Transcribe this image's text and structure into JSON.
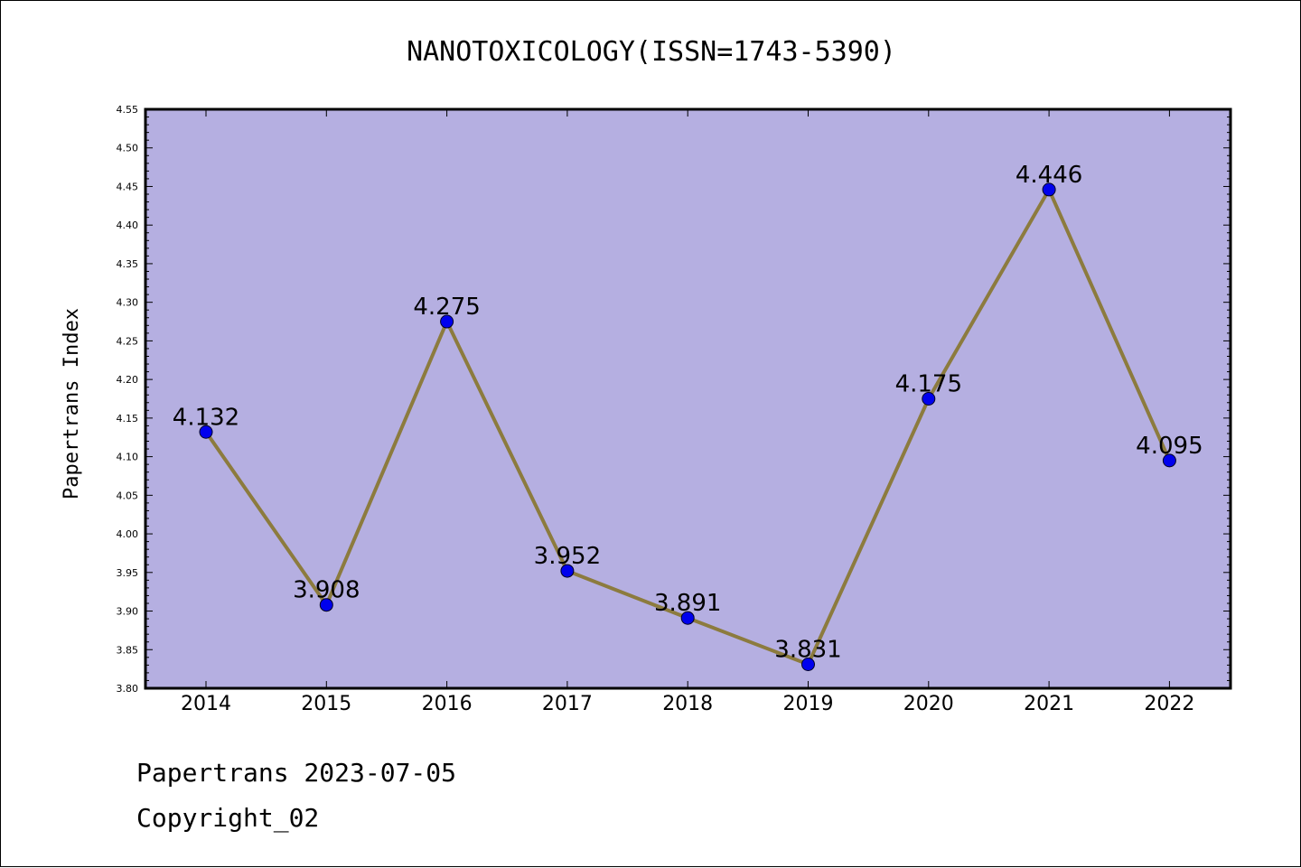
{
  "chart_data": {
    "type": "line",
    "title": "NANOTOXICOLOGY(ISSN=1743-5390)",
    "xlabel": "",
    "ylabel": "Papertrans Index",
    "categories": [
      "2014",
      "2015",
      "2016",
      "2017",
      "2018",
      "2019",
      "2020",
      "2021",
      "2022"
    ],
    "series": [
      {
        "values": [
          4.132,
          3.908,
          4.275,
          3.952,
          3.891,
          3.831,
          4.175,
          4.446,
          4.095
        ],
        "labels": [
          "4.132",
          "3.908",
          "4.275",
          "3.952",
          "3.891",
          "3.831",
          "4.175",
          "4.446",
          "4.095"
        ]
      }
    ],
    "ylim": [
      3.8,
      4.55
    ],
    "yticks": [
      "3.80",
      "3.85",
      "3.90",
      "3.95",
      "4.00",
      "4.05",
      "4.10",
      "4.15",
      "4.20",
      "4.25",
      "4.30",
      "4.35",
      "4.40",
      "4.45",
      "4.50",
      "4.55"
    ],
    "grid": false,
    "colors": {
      "plot_background": "#b5afe1",
      "line": "#8c7b3e",
      "marker": "#0000ee"
    }
  },
  "footer": {
    "line1": "Papertrans 2023-07-05",
    "line2": "Copyright_02"
  }
}
